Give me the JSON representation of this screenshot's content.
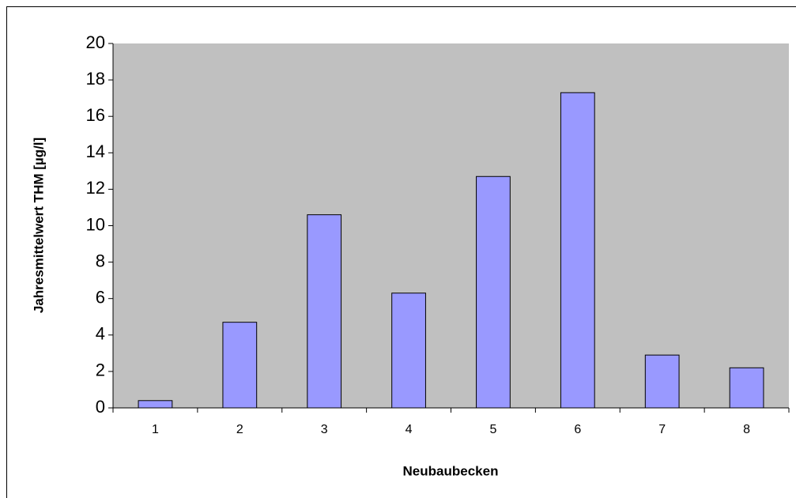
{
  "chart_data": {
    "type": "bar",
    "x_label": "Neubaubecken",
    "y_label": "Jahresmittelwert THM [µg/l]",
    "categories": [
      "1",
      "2",
      "3",
      "4",
      "5",
      "6",
      "7",
      "8"
    ],
    "values": [
      0.4,
      4.7,
      10.6,
      6.3,
      12.7,
      17.3,
      2.9,
      2.2
    ],
    "color": "#9999ff",
    "ylim": [
      0,
      20
    ],
    "yticks": [
      0,
      2,
      4,
      6,
      8,
      10,
      12,
      14,
      16,
      18,
      20
    ]
  }
}
